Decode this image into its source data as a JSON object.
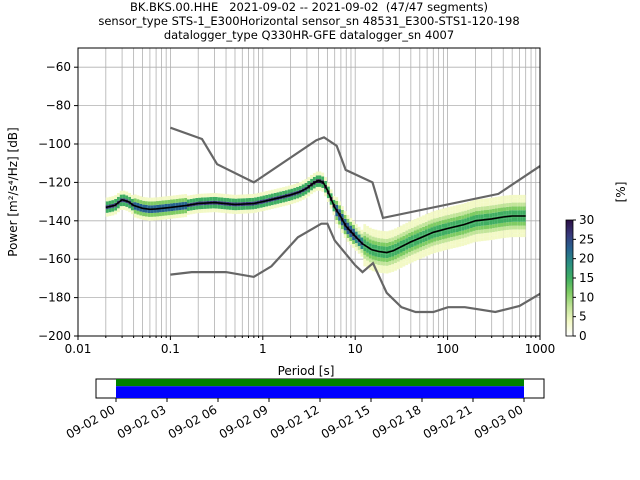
{
  "title_lines": [
    "BK.BKS.00.HHE   2021-09-02 -- 2021-09-02  (47/47 segments)",
    "sensor_type STS-1_E300Horizontal sensor_sn 48531_E300-STS1-120-198",
    "datalogger_type Q330HR-GFE datalogger_sn 4007"
  ],
  "chart_data": {
    "type": "heatmap",
    "xlabel": "Period [s]",
    "ylabel": "Power [m²/s⁴/Hz] [dB]",
    "xscale": "log",
    "xlim": [
      0.01,
      1000
    ],
    "ylim": [
      -200,
      -50
    ],
    "x_ticks": [
      0.01,
      0.1,
      1,
      10,
      100,
      1000
    ],
    "x_tick_labels": [
      "0.01",
      "0.1",
      "1",
      "10",
      "100",
      "1000"
    ],
    "y_ticks": [
      -200,
      -180,
      -160,
      -140,
      -120,
      -100,
      -80,
      -60
    ],
    "grid": true,
    "colorbar": {
      "label": "[%]",
      "range": [
        0,
        30
      ],
      "ticks": [
        0,
        5,
        10,
        15,
        20,
        25,
        30
      ],
      "colors": [
        "#ffffff",
        "#f3f9c6",
        "#c3e59a",
        "#7fcc63",
        "#3fae62",
        "#2a8f82",
        "#27638f",
        "#37387a",
        "#2b0f45"
      ]
    },
    "noise_model_high": {
      "x": [
        0.1,
        0.22,
        0.32,
        0.8,
        3.8,
        4.6,
        6.3,
        7.9,
        15.4,
        20,
        354.8,
        1000
      ],
      "y": [
        -91.5,
        -97.4,
        -110.5,
        -120,
        -98,
        -96.5,
        -101,
        -113.5,
        -120,
        -138.5,
        -126,
        -111.5
      ]
    },
    "noise_model_low": {
      "x": [
        0.1,
        0.17,
        0.4,
        0.8,
        1.24,
        2.4,
        4.3,
        5,
        6,
        10,
        12,
        15.6,
        21.9,
        31.6,
        45,
        70,
        101,
        154,
        328,
        600,
        1000
      ],
      "y": [
        -168,
        -166.7,
        -166.7,
        -169.2,
        -163.7,
        -148.6,
        -141.5,
        -141.5,
        -150.2,
        -163.2,
        -166.7,
        -162.1,
        -177.5,
        -185,
        -187.5,
        -187.5,
        -185,
        -185,
        -187.5,
        -184.4,
        -178
      ]
    },
    "mean_curve": {
      "x": [
        0.02,
        0.025,
        0.03,
        0.035,
        0.04,
        0.05,
        0.06,
        0.07,
        0.1,
        0.15,
        0.2,
        0.3,
        0.5,
        0.8,
        1,
        1.5,
        2,
        2.5,
        3,
        3.5,
        4,
        4.5,
        5,
        6,
        7,
        8,
        10,
        12,
        15,
        18,
        22,
        26,
        30,
        40,
        50,
        70,
        100,
        150,
        200,
        300,
        400,
        500,
        700
      ],
      "y": [
        -133,
        -132,
        -129,
        -130,
        -132,
        -133.5,
        -134,
        -133.8,
        -133,
        -132,
        -131,
        -130.5,
        -131.5,
        -131,
        -130,
        -128,
        -126.5,
        -125,
        -123,
        -120.5,
        -119,
        -120,
        -124,
        -133,
        -138,
        -143,
        -148,
        -152,
        -155,
        -156,
        -156.5,
        -155.5,
        -154,
        -151,
        -149,
        -146,
        -144,
        -142,
        -140,
        -139,
        -138,
        -137.5,
        -137.5
      ]
    }
  },
  "timeline": {
    "tick_labels": [
      "09-02 00",
      "09-02 03",
      "09-02 06",
      "09-02 09",
      "09-02 12",
      "09-02 15",
      "09-02 18",
      "09-02 21",
      "09-03 00"
    ],
    "bar_colors": {
      "coverage": "#0000ff",
      "data": "#008000"
    }
  }
}
